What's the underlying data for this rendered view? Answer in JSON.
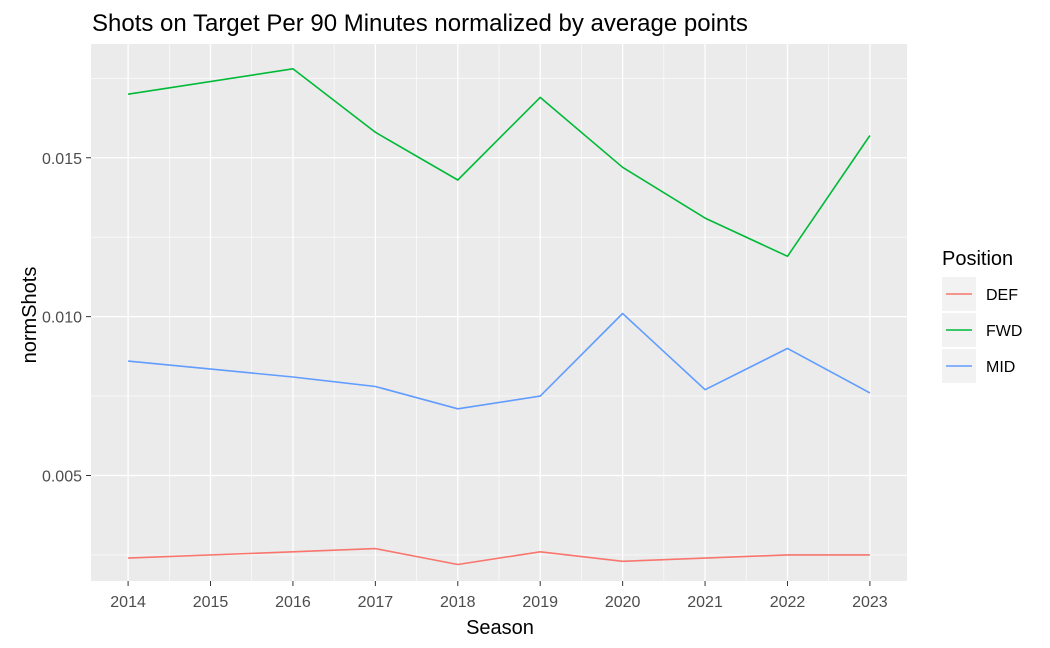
{
  "chart_data": {
    "type": "line",
    "title": "Shots on Target Per 90 Minutes normalized by average points",
    "xlabel": "Season",
    "ylabel": "normShots",
    "x": [
      2014,
      2015,
      2016,
      2017,
      2018,
      2019,
      2020,
      2021,
      2022,
      2023
    ],
    "x_ticks": [
      "2014",
      "2015",
      "2016",
      "2017",
      "2018",
      "2019",
      "2020",
      "2021",
      "2022",
      "2023"
    ],
    "y_ticks": [
      "0.005",
      "0.010",
      "0.015"
    ],
    "y_tick_values": [
      0.005,
      0.01,
      0.015
    ],
    "xlim": [
      2013.55,
      2023.45
    ],
    "ylim": [
      0.00168,
      0.01858
    ],
    "grid": true,
    "legend": {
      "title": "Position",
      "placement": "right"
    },
    "series": [
      {
        "name": "DEF",
        "color": "#F8766D",
        "x": [
          2014,
          2016,
          2017,
          2018,
          2019,
          2020,
          2021,
          2022,
          2023
        ],
        "values": [
          0.0024,
          0.0026,
          0.0027,
          0.0022,
          0.0026,
          0.0023,
          0.0024,
          0.0025,
          0.0025
        ]
      },
      {
        "name": "FWD",
        "color": "#00BA38",
        "x": [
          2014,
          2016,
          2017,
          2018,
          2019,
          2020,
          2021,
          2022,
          2023
        ],
        "values": [
          0.017,
          0.0178,
          0.0158,
          0.0143,
          0.0169,
          0.0147,
          0.0131,
          0.0119,
          0.0157
        ]
      },
      {
        "name": "MID",
        "color": "#619CFF",
        "x": [
          2014,
          2016,
          2017,
          2018,
          2019,
          2020,
          2021,
          2022,
          2023
        ],
        "values": [
          0.0086,
          0.0081,
          0.0078,
          0.0071,
          0.0075,
          0.0101,
          0.0077,
          0.009,
          0.0076
        ]
      }
    ]
  }
}
